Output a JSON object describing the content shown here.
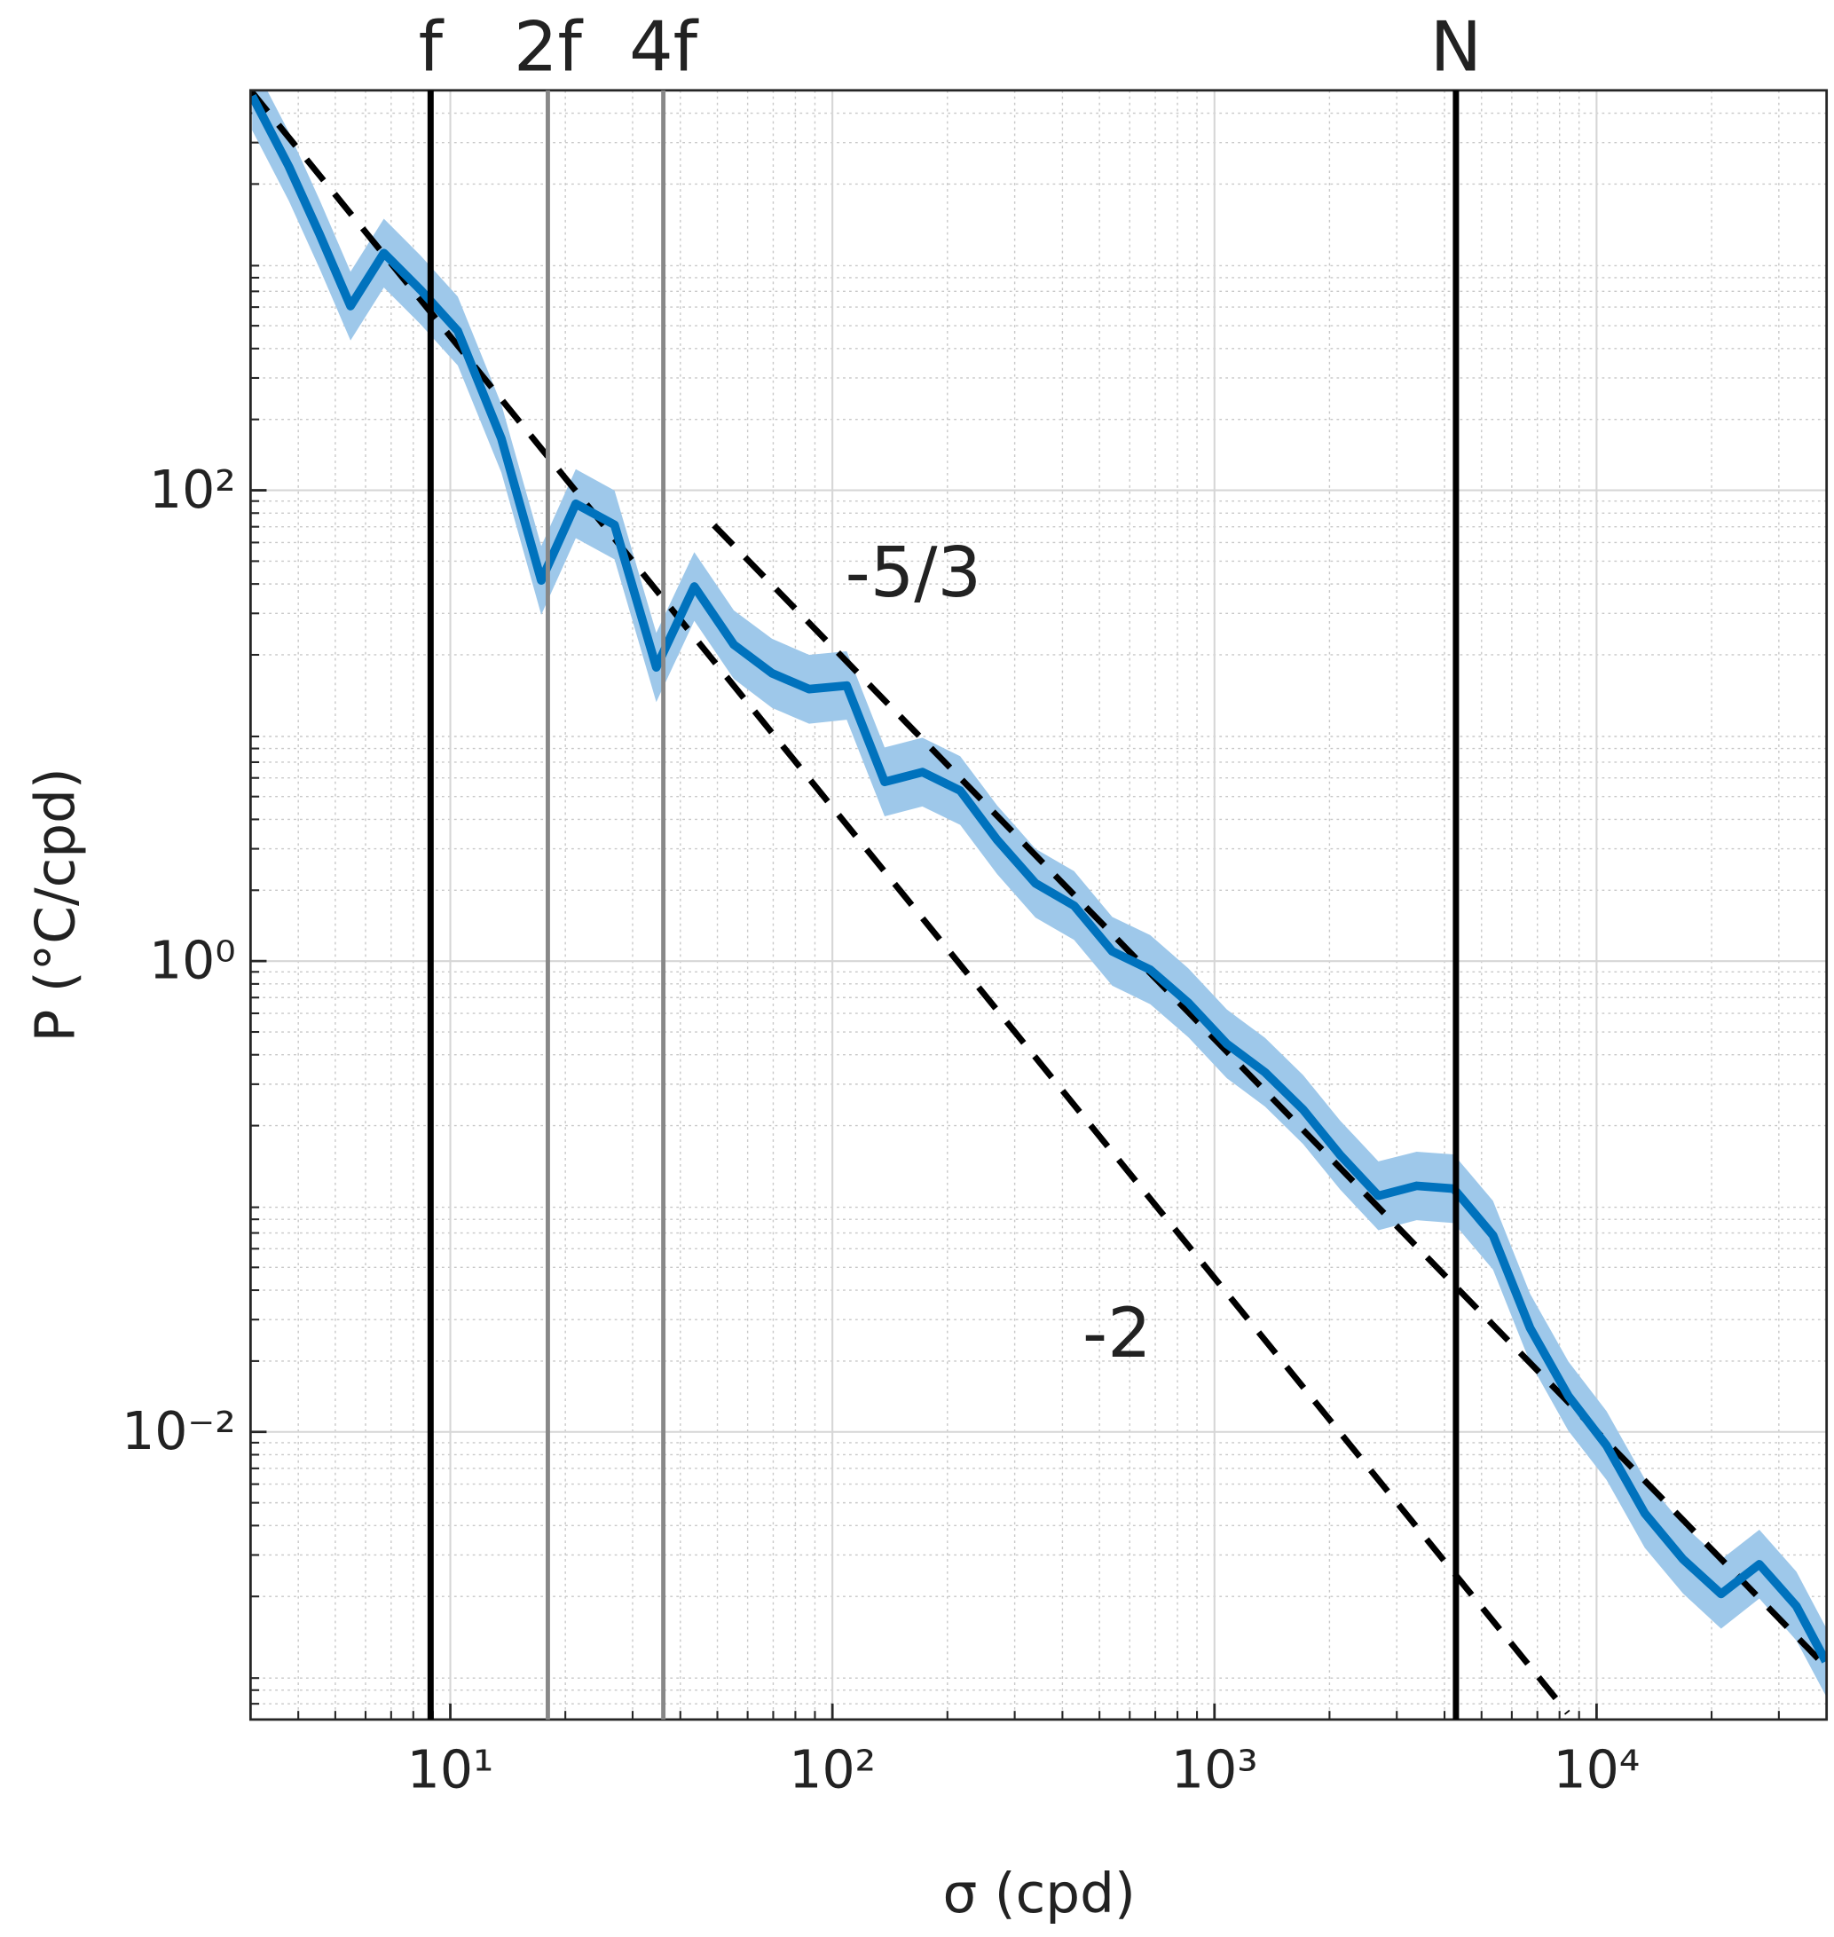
{
  "chart_data": {
    "type": "line",
    "xlabel": "σ (cpd)",
    "ylabel": "P (°C/cpd)",
    "xscale": "log",
    "yscale": "log",
    "grid": true,
    "minor_grid": true,
    "xlim": [
      3,
      40000
    ],
    "ylim": [
      0.0006,
      5000
    ],
    "xticks": [
      {
        "value": 10,
        "label": "10¹"
      },
      {
        "value": 100,
        "label": "10²"
      },
      {
        "value": 1000,
        "label": "10³"
      },
      {
        "value": 10000,
        "label": "10⁴"
      }
    ],
    "yticks": [
      {
        "value": 0.01,
        "label": "10⁻²"
      },
      {
        "value": 1,
        "label": "10⁰"
      },
      {
        "value": 100,
        "label": "10²"
      }
    ],
    "spectrum": {
      "color": "#0072bd",
      "band_color": "#9ec8ea",
      "x": [
        3.03,
        3.78,
        4.55,
        5.48,
        6.7,
        8.37,
        10.46,
        13.6,
        17.3,
        21.3,
        26.9,
        34.6,
        43.5,
        55.2,
        69.5,
        86.9,
        109,
        137,
        172,
        216,
        270,
        340,
        429,
        540,
        679,
        855,
        1077,
        1356,
        1706,
        2133,
        2685,
        3381,
        4227,
        5358,
        6700,
        8440,
        10620,
        13370,
        16830,
        21180,
        26670,
        33340,
        39810
      ],
      "values": [
        4730,
        2373,
        1222,
        606,
        1018,
        708,
        475,
        166,
        41.4,
        87.6,
        71.3,
        17.7,
        39.0,
        22.1,
        16.7,
        14.3,
        14.8,
        5.77,
        6.35,
        5.3,
        3.27,
        2.14,
        1.72,
        1.1,
        0.919,
        0.664,
        0.445,
        0.337,
        0.234,
        0.15,
        0.1007,
        0.111,
        0.108,
        0.0684,
        0.0276,
        0.0142,
        0.00875,
        0.00451,
        0.00288,
        0.00205,
        0.00274,
        0.00182,
        0.00106
      ],
      "upper": [
        6620,
        3320,
        1710,
        848,
        1425,
        991,
        665,
        232,
        58,
        123,
        99.8,
        24.8,
        54.6,
        30.9,
        23.4,
        20,
        20.7,
        8.08,
        8.89,
        7.42,
        4.58,
        3.0,
        2.41,
        1.54,
        1.29,
        0.93,
        0.623,
        0.472,
        0.328,
        0.21,
        0.141,
        0.155,
        0.151,
        0.0958,
        0.0386,
        0.0199,
        0.01225,
        0.00631,
        0.00403,
        0.00287,
        0.00384,
        0.00255,
        0.00148
      ],
      "lower": [
        3380,
        1695,
        873,
        433,
        727,
        506,
        339,
        119,
        29.6,
        62.6,
        50.9,
        12.6,
        27.9,
        15.8,
        11.9,
        10.2,
        10.6,
        4.12,
        4.54,
        3.79,
        2.34,
        1.53,
        1.23,
        0.786,
        0.656,
        0.474,
        0.318,
        0.241,
        0.167,
        0.107,
        0.0719,
        0.0793,
        0.0771,
        0.0489,
        0.0197,
        0.0101,
        0.00625,
        0.00322,
        0.00206,
        0.00146,
        0.00196,
        0.0013,
        0.000757
      ]
    },
    "reference_lines": [
      {
        "label": "-5/3",
        "x": [
          49,
          40000
        ],
        "values": [
          71,
          0.001
        ]
      },
      {
        "label": "-2",
        "x": [
          3,
          8400
        ],
        "values": [
          5000,
          0.00064
        ]
      }
    ],
    "vertical_lines": [
      {
        "label": "f",
        "x": 8.88,
        "color": "#000000"
      },
      {
        "label": "2f",
        "x": 18.0,
        "color": "#888888"
      },
      {
        "label": "4f",
        "x": 36.1,
        "color": "#888888"
      },
      {
        "label": "N",
        "x": 4285,
        "color": "#000000"
      }
    ]
  }
}
